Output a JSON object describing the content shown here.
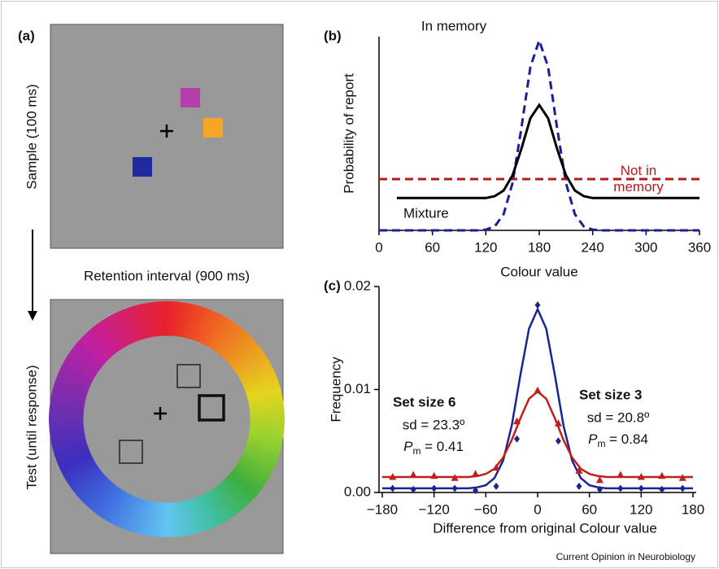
{
  "panel_a": {
    "label": "(a)",
    "sample_label": "Sample (100 ms)",
    "retention_label": "Retention interval (900 ms)",
    "test_label": "Test (until response)"
  },
  "source": "Current Opinion in Neurobiology",
  "chart_data": [
    {
      "type": "line",
      "label": "(b)",
      "x_label": "Colour value",
      "y_label": "Probability of report",
      "x": [
        0,
        10,
        20,
        30,
        40,
        50,
        60,
        70,
        80,
        90,
        100,
        110,
        120,
        130,
        140,
        150,
        160,
        170,
        180,
        190,
        200,
        210,
        220,
        230,
        240,
        250,
        260,
        270,
        280,
        290,
        300,
        310,
        320,
        330,
        340,
        350,
        360
      ],
      "xlim": [
        0,
        360
      ],
      "xticks": [
        0,
        60,
        120,
        180,
        240,
        300,
        360
      ],
      "ylim": [
        0,
        1.02
      ],
      "series": [
        {
          "name": "In memory",
          "color": "#1b1f9a",
          "dashed": true,
          "values": [
            0,
            0,
            0,
            0,
            0,
            0,
            0,
            0,
            0,
            0,
            0,
            0,
            0.004,
            0.021,
            0.085,
            0.25,
            0.54,
            0.86,
            1.0,
            0.86,
            0.54,
            0.25,
            0.085,
            0.021,
            0.004,
            0,
            0,
            0,
            0,
            0,
            0,
            0,
            0,
            0,
            0,
            0,
            0
          ]
        },
        {
          "name": "Not in memory",
          "color": "#b01c1c",
          "dashed": true,
          "values": [
            0.27,
            0.27,
            0.27,
            0.27,
            0.27,
            0.27,
            0.27,
            0.27,
            0.27,
            0.27,
            0.27,
            0.27,
            0.27,
            0.27,
            0.27,
            0.27,
            0.27,
            0.27,
            0.27,
            0.27,
            0.27,
            0.27,
            0.27,
            0.27,
            0.27,
            0.27,
            0.27,
            0.27,
            0.27,
            0.27,
            0.27,
            0.27,
            0.27,
            0.27,
            0.27,
            0.27,
            0.27
          ]
        },
        {
          "name": "Mixture",
          "color": "#000000",
          "dashed": false,
          "values": [
            null,
            null,
            0.17,
            0.17,
            0.17,
            0.17,
            0.17,
            0.17,
            0.17,
            0.17,
            0.17,
            0.17,
            0.17,
            0.18,
            0.21,
            0.29,
            0.43,
            0.59,
            0.66,
            0.59,
            0.43,
            0.29,
            0.21,
            0.18,
            0.17,
            0.17,
            0.17,
            0.17,
            0.17,
            0.17,
            0.17,
            0.17,
            0.17,
            0.17,
            0.17,
            0.17,
            0.17
          ]
        }
      ]
    },
    {
      "type": "fit",
      "label": "(c)",
      "x_label": "Difference from original Colour value",
      "y_label": "Frequency",
      "xlim": [
        -180,
        180
      ],
      "xticks": [
        {
          "value": -180,
          "label": "−180"
        },
        {
          "value": -120,
          "label": "−120"
        },
        {
          "value": -60,
          "label": "−60"
        },
        0,
        60,
        120,
        180
      ],
      "ylim": [
        0,
        0.02
      ],
      "yticks": [
        {
          "value": 0,
          "label": "0.00"
        },
        {
          "value": 0.01,
          "label": "0.01"
        },
        {
          "value": 0.02,
          "label": "0.02"
        }
      ],
      "point_x": [
        -168,
        -144,
        -120,
        -96,
        -72,
        -48,
        -24,
        0,
        24,
        48,
        72,
        96,
        120,
        144,
        168
      ],
      "fit_x": [
        -180,
        -170,
        -160,
        -150,
        -140,
        -130,
        -120,
        -110,
        -100,
        -90,
        -80,
        -70,
        -60,
        -50,
        -40,
        -30,
        -20,
        -10,
        0,
        10,
        20,
        30,
        40,
        50,
        60,
        70,
        80,
        90,
        100,
        110,
        120,
        130,
        140,
        150,
        160,
        170,
        180
      ],
      "series": [
        {
          "name": "Set size 3",
          "color": "#1b2590",
          "marker": "diamond",
          "sd_text": "sd = 20.8º",
          "pm_symbol": "P",
          "pm_subscript": "m",
          "pm_text": " = 0.84",
          "values": [
            0.0004,
            0.0003,
            0.0004,
            0.0004,
            0.0002,
            0.0006,
            0.0052,
            0.0182,
            0.005,
            0.0006,
            0.0003,
            0.0004,
            0.0004,
            0.0003,
            0.0004
          ],
          "fit_values": [
            0.0004,
            0.0004,
            0.0004,
            0.0004,
            0.0004,
            0.0004,
            0.0004,
            0.0004,
            0.0004,
            0.0004,
            0.0004,
            0.0005,
            0.0007,
            0.0014,
            0.0031,
            0.0065,
            0.0114,
            0.0159,
            0.0178,
            0.0159,
            0.0114,
            0.0065,
            0.0031,
            0.0014,
            0.0007,
            0.0005,
            0.0004,
            0.0004,
            0.0004,
            0.0004,
            0.0004,
            0.0004,
            0.0004,
            0.0004,
            0.0004,
            0.0004,
            0.0004
          ]
        },
        {
          "name": "Set size 6",
          "color": "#c0201c",
          "marker": "triangle",
          "sd_text": "sd = 23.3º",
          "pm_symbol": "P",
          "pm_subscript": "m",
          "pm_text": " = 0.41",
          "values": [
            0.0015,
            0.0017,
            0.0016,
            0.0014,
            0.0018,
            0.0024,
            0.0069,
            0.0099,
            0.0067,
            0.0021,
            0.0012,
            0.0017,
            0.0015,
            0.0016,
            0.0014
          ],
          "fit_values": [
            0.0015,
            0.0015,
            0.0015,
            0.0015,
            0.0015,
            0.0015,
            0.0015,
            0.0015,
            0.0015,
            0.0015,
            0.0015,
            0.0016,
            0.0018,
            0.0023,
            0.0034,
            0.0051,
            0.0072,
            0.0091,
            0.0098,
            0.0091,
            0.0072,
            0.0051,
            0.0034,
            0.0023,
            0.0018,
            0.0016,
            0.0015,
            0.0015,
            0.0015,
            0.0015,
            0.0015,
            0.0015,
            0.0015,
            0.0015,
            0.0015,
            0.0015,
            0.0015
          ]
        }
      ]
    }
  ]
}
